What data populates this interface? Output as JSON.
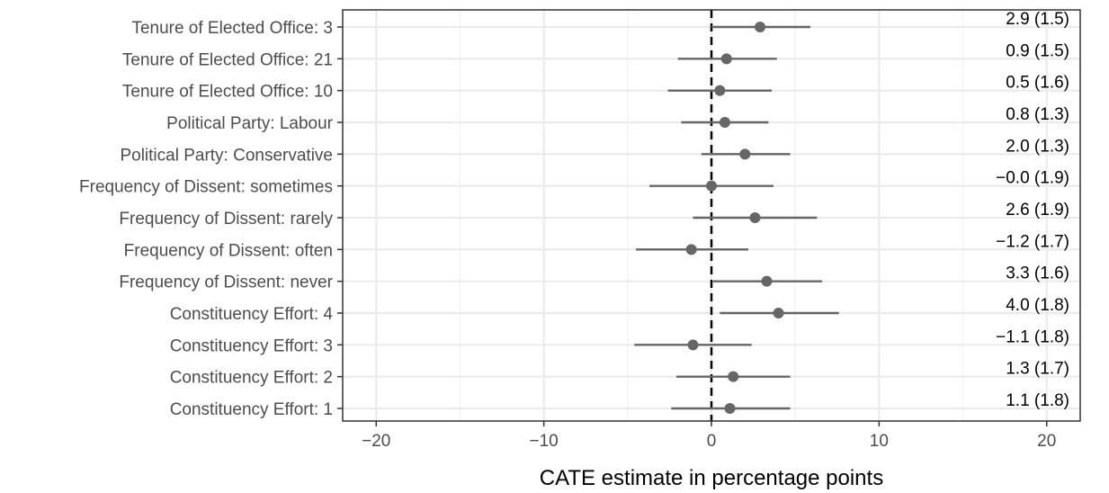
{
  "chart_data": {
    "type": "forest",
    "xlabel": "CATE estimate in percentage points",
    "xlim": [
      -22,
      22
    ],
    "xticks": [
      -20,
      -10,
      0,
      10,
      20
    ],
    "xtick_labels": [
      "−20",
      "−10",
      "0",
      "10",
      "20"
    ],
    "reference_line": 0,
    "grid": true,
    "point_color": "#666666",
    "rows": [
      {
        "label": "Tenure of Elected Office: 3",
        "estimate": 2.9,
        "lower": 0.0,
        "upper": 5.9,
        "text": "2.9 (1.5)"
      },
      {
        "label": "Tenure of Elected Office: 21",
        "estimate": 0.9,
        "lower": -2.0,
        "upper": 3.9,
        "text": "0.9 (1.5)"
      },
      {
        "label": "Tenure of Elected Office: 10",
        "estimate": 0.5,
        "lower": -2.6,
        "upper": 3.6,
        "text": "0.5 (1.6)"
      },
      {
        "label": "Political Party: Labour",
        "estimate": 0.8,
        "lower": -1.8,
        "upper": 3.4,
        "text": "0.8 (1.3)"
      },
      {
        "label": "Political Party: Conservative",
        "estimate": 2.0,
        "lower": -0.6,
        "upper": 4.7,
        "text": "2.0 (1.3)"
      },
      {
        "label": "Frequency of Dissent: sometimes",
        "estimate": 0.0,
        "lower": -3.7,
        "upper": 3.7,
        "text": "−0.0 (1.9)"
      },
      {
        "label": "Frequency of Dissent: rarely",
        "estimate": 2.6,
        "lower": -1.1,
        "upper": 6.3,
        "text": "2.6 (1.9)"
      },
      {
        "label": "Frequency of Dissent: often",
        "estimate": -1.2,
        "lower": -4.5,
        "upper": 2.2,
        "text": "−1.2 (1.7)"
      },
      {
        "label": "Frequency of Dissent: never",
        "estimate": 3.3,
        "lower": 0.1,
        "upper": 6.6,
        "text": "3.3 (1.6)"
      },
      {
        "label": "Constituency Effort: 4",
        "estimate": 4.0,
        "lower": 0.5,
        "upper": 7.6,
        "text": "4.0 (1.8)"
      },
      {
        "label": "Constituency Effort: 3",
        "estimate": -1.1,
        "lower": -4.6,
        "upper": 2.4,
        "text": "−1.1 (1.8)"
      },
      {
        "label": "Constituency Effort: 2",
        "estimate": 1.3,
        "lower": -2.1,
        "upper": 4.7,
        "text": "1.3 (1.7)"
      },
      {
        "label": "Constituency Effort: 1",
        "estimate": 1.1,
        "lower": -2.4,
        "upper": 4.7,
        "text": "1.1 (1.8)"
      }
    ]
  }
}
